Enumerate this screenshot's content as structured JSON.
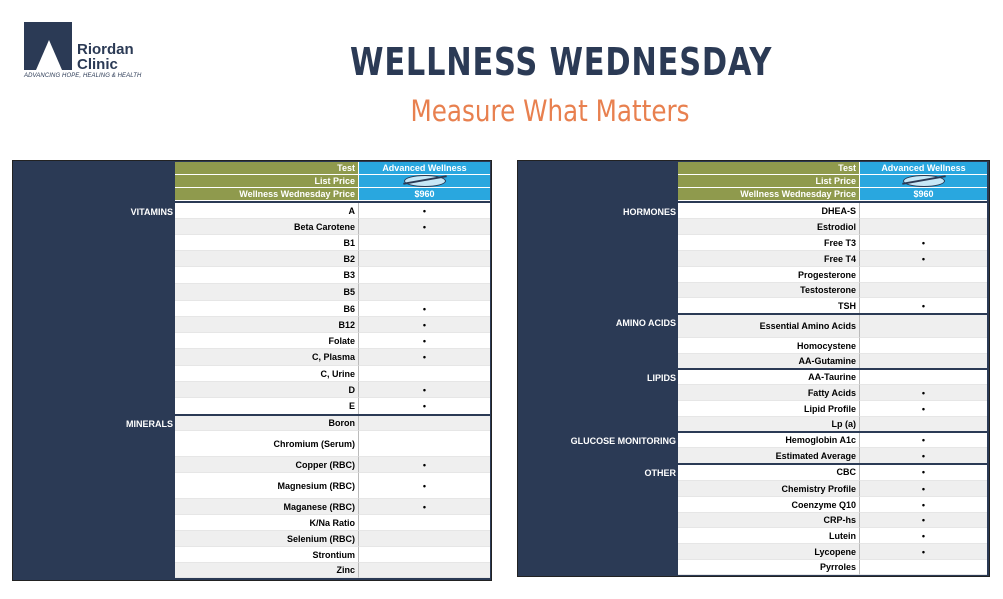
{
  "logo": {
    "line1": "Riordan",
    "line2": "Clinic",
    "tagline": "ADVANCING HOPE, HEALING & HEALTH"
  },
  "title": "WELLNESS WEDNESDAY",
  "subtitle": "Measure What Matters",
  "header": {
    "test_label": "Test",
    "list_price_label": "List Price",
    "ww_price_label": "Wellness Wednesday Price",
    "panel_name": "Advanced Wellness",
    "ww_price": "$960",
    "list_price_struck": true
  },
  "left_table": {
    "categories": [
      {
        "name": "VITAMINS",
        "row": 0
      },
      {
        "name": "MINERALS",
        "row": 13
      }
    ],
    "rows": [
      {
        "test": "A",
        "mark": "•"
      },
      {
        "test": "Beta Carotene",
        "mark": "•"
      },
      {
        "test": "B1",
        "mark": ""
      },
      {
        "test": "B2",
        "mark": ""
      },
      {
        "test": "B3",
        "mark": ""
      },
      {
        "test": "B5",
        "mark": ""
      },
      {
        "test": "B6",
        "mark": "•"
      },
      {
        "test": "B12",
        "mark": "•"
      },
      {
        "test": "Folate",
        "mark": "•"
      },
      {
        "test": "C, Plasma",
        "mark": "•"
      },
      {
        "test": "C, Urine",
        "mark": ""
      },
      {
        "test": "D",
        "mark": "•"
      },
      {
        "test": "E",
        "mark": "•"
      },
      {
        "test": "Boron",
        "mark": ""
      },
      {
        "test": "Chromium (Serum)",
        "mark": ""
      },
      {
        "test": "Copper (RBC)",
        "mark": "•"
      },
      {
        "test": "Magnesium (RBC)",
        "mark": "•"
      },
      {
        "test": "Maganese (RBC)",
        "mark": "•"
      },
      {
        "test": "K/Na Ratio",
        "mark": ""
      },
      {
        "test": "Selenium (RBC)",
        "mark": ""
      },
      {
        "test": "Strontium",
        "mark": ""
      },
      {
        "test": "Zinc",
        "mark": ""
      }
    ]
  },
  "right_table": {
    "categories": [
      {
        "name": "HORMONES",
        "row": 0
      },
      {
        "name": "AMINO ACIDS",
        "row": 7
      },
      {
        "name": "LIPIDS",
        "row": 10
      },
      {
        "name": "GLUCOSE MONITORING",
        "row": 14
      },
      {
        "name": "OTHER",
        "row": 16
      }
    ],
    "rows": [
      {
        "test": "DHEA-S",
        "mark": ""
      },
      {
        "test": "Estrodiol",
        "mark": ""
      },
      {
        "test": "Free T3",
        "mark": "•"
      },
      {
        "test": "Free T4",
        "mark": "•"
      },
      {
        "test": "Progesterone",
        "mark": ""
      },
      {
        "test": "Testosterone",
        "mark": ""
      },
      {
        "test": "TSH",
        "mark": "•"
      },
      {
        "test": "Essential Amino Acids",
        "mark": ""
      },
      {
        "test": "Homocystene",
        "mark": ""
      },
      {
        "test": "AA-Gutamine",
        "mark": ""
      },
      {
        "test": "AA-Taurine",
        "mark": ""
      },
      {
        "test": "Fatty Acids",
        "mark": "•"
      },
      {
        "test": "Lipid Profile",
        "mark": "•"
      },
      {
        "test": "Lp (a)",
        "mark": ""
      },
      {
        "test": "Hemoglobin A1c",
        "mark": "•"
      },
      {
        "test": "Estimated Average",
        "mark": "•"
      },
      {
        "test": "CBC",
        "mark": "•"
      },
      {
        "test": "Chemistry Profile",
        "mark": "•"
      },
      {
        "test": "Coenzyme Q10",
        "mark": "•"
      },
      {
        "test": "CRP-hs",
        "mark": "•"
      },
      {
        "test": "Lutein",
        "mark": "•"
      },
      {
        "test": "Lycopene",
        "mark": "•"
      },
      {
        "test": "Pyrroles",
        "mark": ""
      }
    ]
  }
}
